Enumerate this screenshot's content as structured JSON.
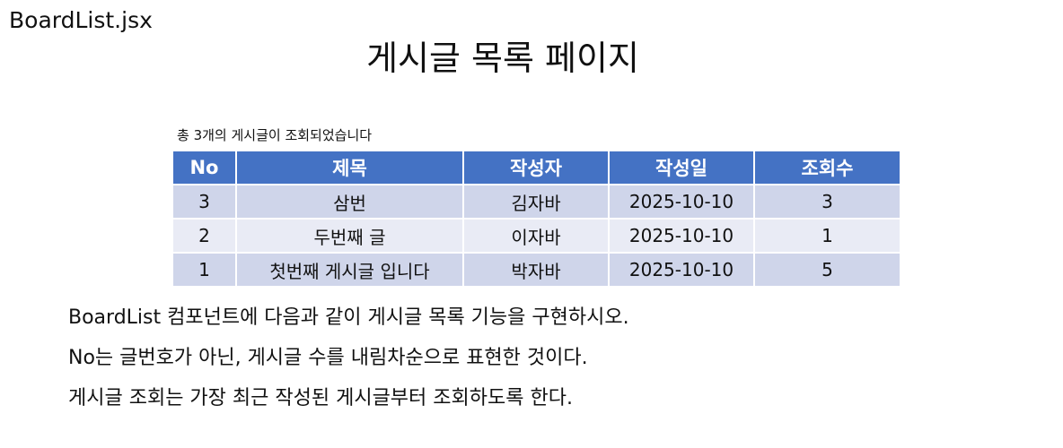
{
  "file_name": "BoardList.jsx",
  "page_title": "게시글 목록 페이지",
  "summary": "총 3개의 게시글이 조회되었습니다",
  "table": {
    "headers": [
      "No",
      "제목",
      "작성자",
      "작성일",
      "조회수"
    ],
    "rows": [
      [
        "3",
        "삼번",
        "김자바",
        "2025-10-10",
        "3"
      ],
      [
        "2",
        "두번째 글",
        "이자바",
        "2025-10-10",
        "1"
      ],
      [
        "1",
        "첫번째 게시글 입니다",
        "박자바",
        "2025-10-10",
        "5"
      ]
    ]
  },
  "notes": [
    "BoardList 컴포넌트에 다음과 같이 게시글 목록 기능을 구현하시오.",
    "No는 글번호가 아닌, 게시글 수를 내림차순으로 표현한 것이다.",
    "게시글 조회는 가장 최근 작성된 게시글부터 조회하도록 한다."
  ],
  "colors": {
    "header_bg": "#4472c4",
    "row_odd_bg": "#cfd5ea",
    "row_even_bg": "#e9ebf5"
  }
}
